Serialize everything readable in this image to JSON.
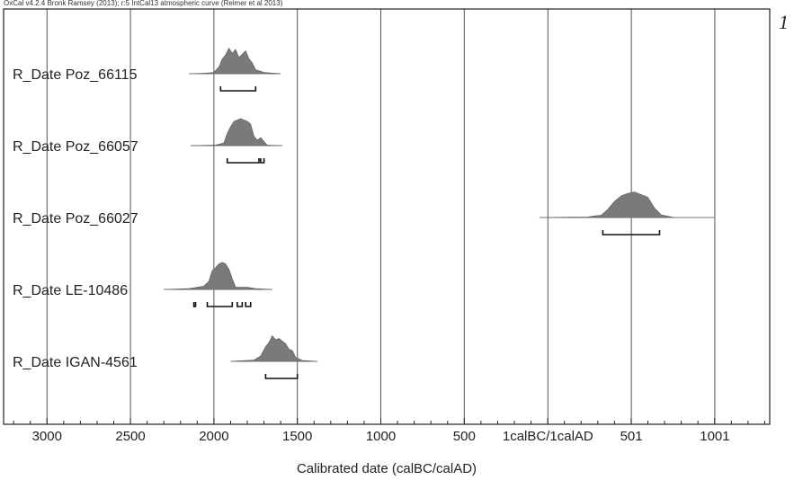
{
  "header": "OxCal v4.2.4 Bronk Ramsey (2013); r:5 IntCal13 atmospheric curve (Reimer et al 2013)",
  "figure_number": "1",
  "chart_data": {
    "type": "area",
    "title": "",
    "xlabel": "Calibrated date (calBC/calAD)",
    "ylabel": "",
    "x_axis": "calendar years, BC negative / AD positive",
    "xlim": [
      -3260,
      1330
    ],
    "grid": "vertical",
    "x_tick_values": [
      -3000,
      -2500,
      -2000,
      -1500,
      -1000,
      -500,
      1,
      501,
      1001
    ],
    "x_tick_labels": [
      "3000",
      "2500",
      "2000",
      "1500",
      "1000",
      "500",
      "1calBC/1calAD",
      "501",
      "1001"
    ],
    "series": [
      {
        "name": "R_Date Poz_66115",
        "line_range": [
          -2150,
          -1600
        ],
        "distribution": [
          [
            -2150,
            0
          ],
          [
            -2050,
            0.02
          ],
          [
            -2000,
            0.05
          ],
          [
            -1970,
            0.25
          ],
          [
            -1950,
            0.55
          ],
          [
            -1930,
            0.7
          ],
          [
            -1910,
            0.95
          ],
          [
            -1890,
            0.75
          ],
          [
            -1870,
            0.9
          ],
          [
            -1850,
            0.6
          ],
          [
            -1830,
            0.72
          ],
          [
            -1810,
            0.85
          ],
          [
            -1790,
            0.55
          ],
          [
            -1770,
            0.4
          ],
          [
            -1750,
            0.15
          ],
          [
            -1700,
            0.05
          ],
          [
            -1600,
            0
          ]
        ],
        "ranges": [
          [
            -1960,
            -1750
          ]
        ]
      },
      {
        "name": "R_Date Poz_66057",
        "line_range": [
          -2140,
          -1590
        ],
        "distribution": [
          [
            -2140,
            0
          ],
          [
            -1990,
            0.02
          ],
          [
            -1940,
            0.1
          ],
          [
            -1920,
            0.45
          ],
          [
            -1900,
            0.7
          ],
          [
            -1880,
            0.9
          ],
          [
            -1860,
            0.95
          ],
          [
            -1840,
            1.0
          ],
          [
            -1820,
            0.95
          ],
          [
            -1800,
            0.9
          ],
          [
            -1780,
            0.8
          ],
          [
            -1760,
            0.35
          ],
          [
            -1740,
            0.2
          ],
          [
            -1720,
            0.3
          ],
          [
            -1700,
            0.15
          ],
          [
            -1680,
            0.02
          ],
          [
            -1590,
            0
          ]
        ],
        "ranges": [
          [
            -1920,
            -1730
          ],
          [
            -1720,
            -1700
          ]
        ]
      },
      {
        "name": "R_Date Poz_66027",
        "line_range": [
          -50,
          1000
        ],
        "distribution": [
          [
            -50,
            0
          ],
          [
            240,
            0.02
          ],
          [
            280,
            0.06
          ],
          [
            320,
            0.08
          ],
          [
            360,
            0.3
          ],
          [
            400,
            0.6
          ],
          [
            440,
            0.8
          ],
          [
            480,
            0.9
          ],
          [
            520,
            0.95
          ],
          [
            560,
            0.85
          ],
          [
            600,
            0.75
          ],
          [
            640,
            0.35
          ],
          [
            680,
            0.1
          ],
          [
            760,
            0
          ],
          [
            1000,
            0
          ]
        ],
        "ranges": [
          [
            330,
            670
          ]
        ]
      },
      {
        "name": "R_Date LE-10486",
        "line_range": [
          -2300,
          -1650
        ],
        "distribution": [
          [
            -2300,
            0
          ],
          [
            -2150,
            0.03
          ],
          [
            -2100,
            0.08
          ],
          [
            -2060,
            0.12
          ],
          [
            -2030,
            0.3
          ],
          [
            -2010,
            0.7
          ],
          [
            -1990,
            0.8
          ],
          [
            -1970,
            0.95
          ],
          [
            -1950,
            1.0
          ],
          [
            -1930,
            0.95
          ],
          [
            -1910,
            0.75
          ],
          [
            -1890,
            0.4
          ],
          [
            -1870,
            0.08
          ],
          [
            -1800,
            0.08
          ],
          [
            -1750,
            0.03
          ],
          [
            -1650,
            0
          ]
        ],
        "ranges": [
          [
            -2120,
            -2110
          ],
          [
            -2040,
            -1890
          ],
          [
            -1860,
            -1830
          ],
          [
            -1810,
            -1780
          ]
        ]
      },
      {
        "name": "R_Date IGAN-4561",
        "line_range": [
          -1900,
          -1380
        ],
        "distribution": [
          [
            -1900,
            0
          ],
          [
            -1760,
            0.05
          ],
          [
            -1720,
            0.2
          ],
          [
            -1690,
            0.55
          ],
          [
            -1670,
            0.7
          ],
          [
            -1650,
            0.95
          ],
          [
            -1630,
            0.8
          ],
          [
            -1610,
            0.85
          ],
          [
            -1590,
            0.75
          ],
          [
            -1570,
            0.65
          ],
          [
            -1550,
            0.45
          ],
          [
            -1530,
            0.4
          ],
          [
            -1510,
            0.15
          ],
          [
            -1470,
            0.03
          ],
          [
            -1380,
            0
          ]
        ],
        "ranges": [
          [
            -1690,
            -1500
          ]
        ]
      }
    ]
  }
}
